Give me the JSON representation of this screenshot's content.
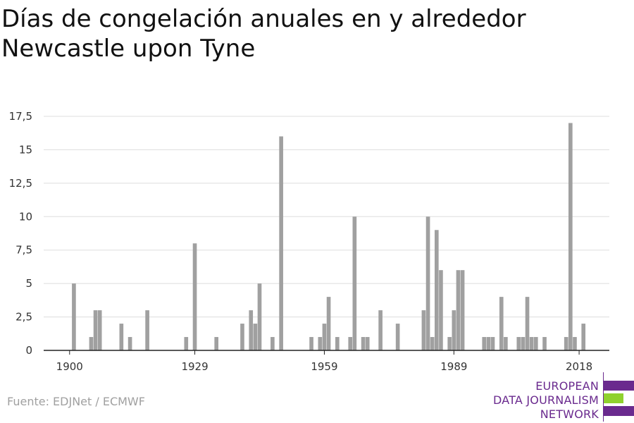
{
  "title": {
    "line1": "Días de congelación anuales en y alrededor",
    "line2": "Newcastle upon Tyne"
  },
  "source": "Fuente: EDJNet / ECMWF",
  "logo": {
    "line1": "EUROPEAN",
    "line2": "DATA JOURNALISM",
    "line3": "NETWORK",
    "colors": {
      "purple": "#6a2a8e",
      "green": "#8fd12e"
    }
  },
  "chart_data": {
    "type": "bar",
    "x_ticks": [
      1900,
      1929,
      1959,
      1989,
      2018
    ],
    "x_tick_labels": [
      "1900",
      "1929",
      "1959",
      "1989",
      "2018"
    ],
    "y_ticks": [
      0,
      2.5,
      5,
      7.5,
      10,
      12.5,
      15,
      17.5
    ],
    "y_tick_labels": [
      "0",
      "2,5",
      "5",
      "7,5",
      "10",
      "12,5",
      "15",
      "17,5"
    ],
    "ylim": [
      0,
      17.5
    ],
    "xlim": [
      1894,
      2025
    ],
    "grid": true,
    "bar_color": "#a0a0a0",
    "x": [
      1901,
      1902,
      1903,
      1904,
      1905,
      1906,
      1907,
      1908,
      1909,
      1910,
      1911,
      1912,
      1913,
      1914,
      1915,
      1916,
      1917,
      1918,
      1919,
      1920,
      1921,
      1922,
      1923,
      1924,
      1925,
      1926,
      1927,
      1928,
      1929,
      1930,
      1931,
      1932,
      1933,
      1934,
      1935,
      1936,
      1937,
      1938,
      1939,
      1940,
      1941,
      1942,
      1943,
      1944,
      1945,
      1946,
      1947,
      1948,
      1949,
      1950,
      1951,
      1952,
      1953,
      1954,
      1955,
      1956,
      1957,
      1958,
      1959,
      1960,
      1961,
      1962,
      1963,
      1964,
      1965,
      1966,
      1967,
      1968,
      1969,
      1970,
      1971,
      1972,
      1973,
      1974,
      1975,
      1976,
      1977,
      1978,
      1979,
      1980,
      1981,
      1982,
      1983,
      1984,
      1985,
      1986,
      1987,
      1988,
      1989,
      1990,
      1991,
      1992,
      1993,
      1994,
      1995,
      1996,
      1997,
      1998,
      1999,
      2000,
      2001,
      2002,
      2003,
      2004,
      2005,
      2006,
      2007,
      2008,
      2009,
      2010,
      2011,
      2012,
      2013,
      2014,
      2015,
      2016,
      2017,
      2018,
      2019,
      2020
    ],
    "values": [
      5,
      0,
      0,
      0,
      1,
      3,
      3,
      0,
      0,
      0,
      0,
      2,
      0,
      1,
      0,
      0,
      0,
      3,
      0,
      0,
      0,
      0,
      0,
      0,
      0,
      0,
      1,
      0,
      8,
      0,
      0,
      0,
      0,
      1,
      0,
      0,
      0,
      0,
      0,
      2,
      0,
      3,
      2,
      5,
      0,
      0,
      1,
      0,
      16,
      0,
      0,
      0,
      0,
      0,
      0,
      1,
      0,
      1,
      2,
      4,
      0,
      1,
      0,
      0,
      1,
      10,
      0,
      1,
      1,
      0,
      0,
      3,
      0,
      0,
      0,
      2,
      0,
      0,
      0,
      0,
      0,
      3,
      10,
      1,
      9,
      6,
      0,
      1,
      3,
      6,
      6,
      0,
      0,
      0,
      0,
      1,
      1,
      1,
      0,
      4,
      1,
      0,
      0,
      1,
      1,
      4,
      1,
      1,
      0,
      1,
      0,
      0,
      0,
      0,
      1,
      17,
      1,
      0,
      2,
      0
    ]
  }
}
